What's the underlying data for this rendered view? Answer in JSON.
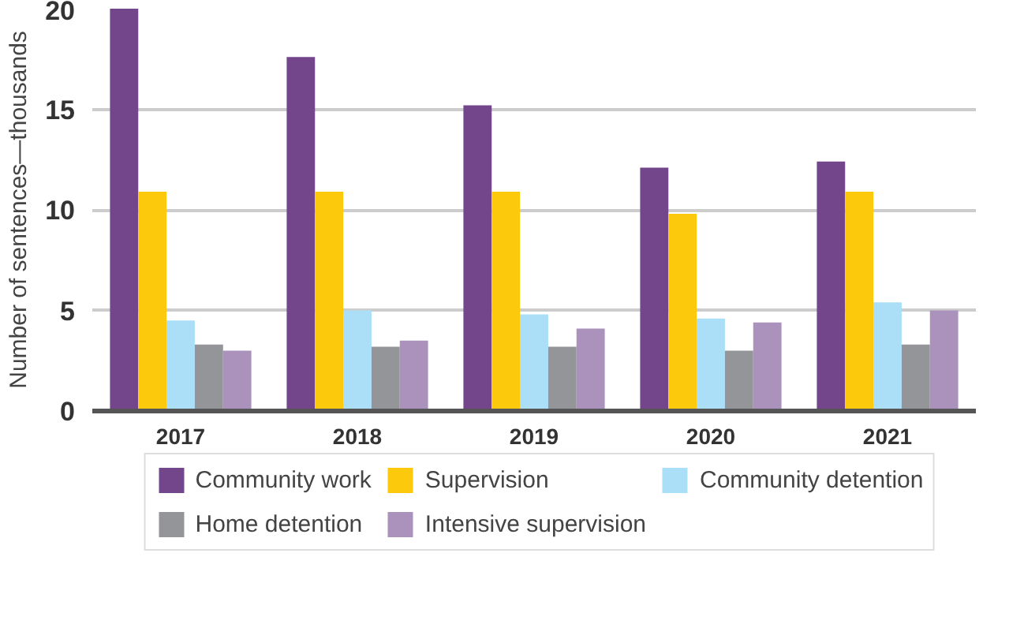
{
  "chart_data": {
    "type": "bar",
    "ylabel": "Number of sentences—thousands",
    "categories": [
      "2017",
      "2018",
      "2019",
      "2020",
      "2021"
    ],
    "series": [
      {
        "name": "Community work",
        "color": "#73468b",
        "values": [
          20.0,
          17.6,
          15.2,
          12.1,
          12.4
        ]
      },
      {
        "name": "Supervision",
        "color": "#fdc90c",
        "values": [
          10.9,
          10.9,
          10.9,
          9.8,
          10.9
        ]
      },
      {
        "name": "Community detention",
        "color": "#abdff8",
        "values": [
          4.5,
          5.0,
          4.8,
          4.6,
          5.4
        ]
      },
      {
        "name": "Home detention",
        "color": "#939598",
        "values": [
          3.3,
          3.2,
          3.2,
          3.0,
          3.3
        ]
      },
      {
        "name": "Intensive supervision",
        "color": "#ab92bd",
        "values": [
          3.0,
          3.5,
          4.1,
          4.4,
          5.0
        ]
      }
    ],
    "ylim": [
      0,
      20
    ],
    "yticks": [
      0,
      5,
      10,
      15,
      20
    ],
    "grid": "y",
    "legend": "bottom"
  }
}
